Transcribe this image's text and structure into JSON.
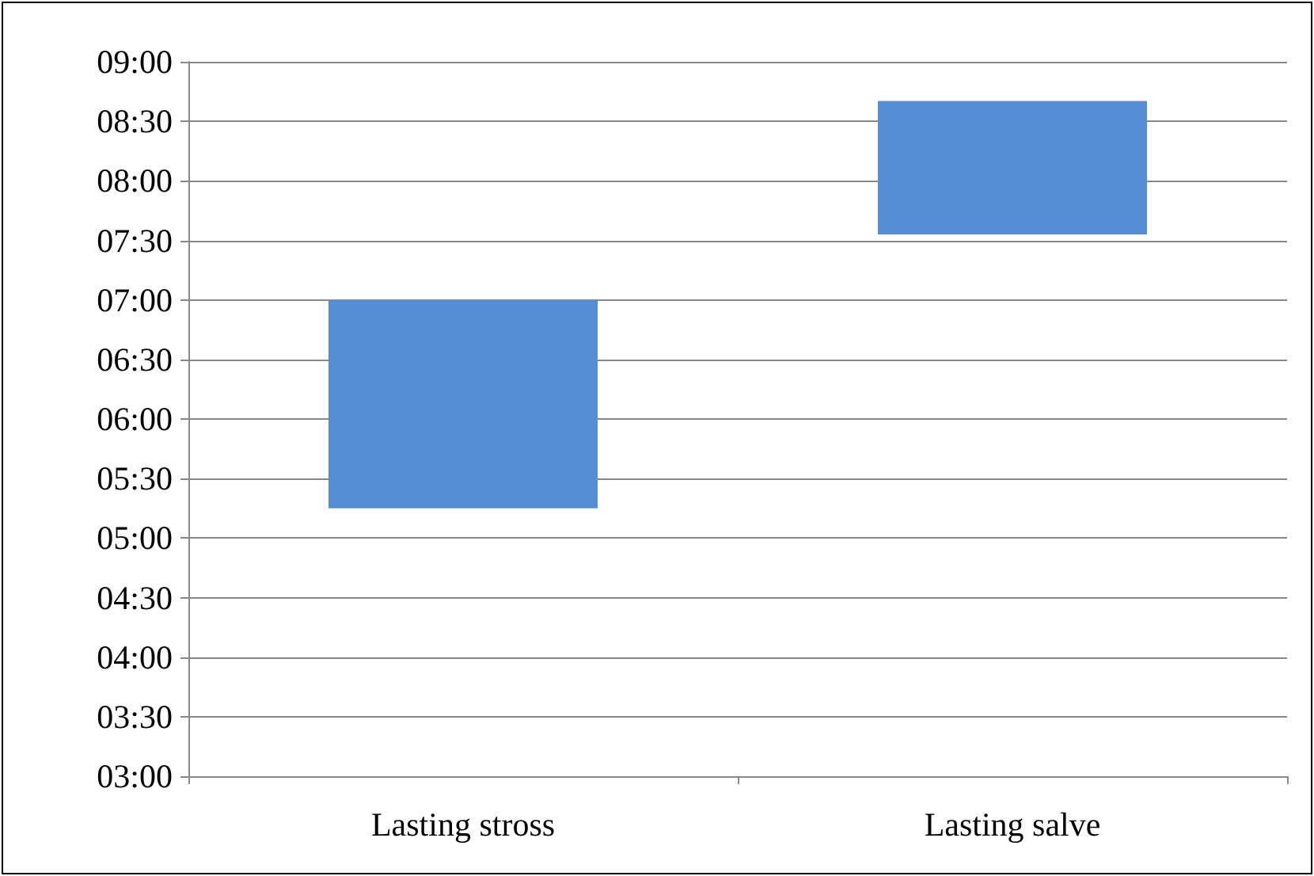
{
  "chart_data": {
    "type": "bar",
    "categories": [
      "Lasting stross",
      "Lasting salve"
    ],
    "base": [
      5.25,
      7.55
    ],
    "values": [
      1.75,
      1.12
    ],
    "color": "#558ed5",
    "ylim": [
      3,
      9
    ],
    "yticks": [
      {
        "value": 3,
        "label": "03:00"
      },
      {
        "value": 3.5,
        "label": "03:30"
      },
      {
        "value": 4,
        "label": "04:00"
      },
      {
        "value": 4.5,
        "label": "04:30"
      },
      {
        "value": 5,
        "label": "05:00"
      },
      {
        "value": 5.5,
        "label": "05:30"
      },
      {
        "value": 6,
        "label": "06:00"
      },
      {
        "value": 6.5,
        "label": "06:30"
      },
      {
        "value": 7,
        "label": "07:00"
      },
      {
        "value": 7.5,
        "label": "07:30"
      },
      {
        "value": 8,
        "label": "08:00"
      },
      {
        "value": 8.5,
        "label": "08:30"
      },
      {
        "value": 9,
        "label": "09:00"
      }
    ],
    "grid": "y"
  }
}
